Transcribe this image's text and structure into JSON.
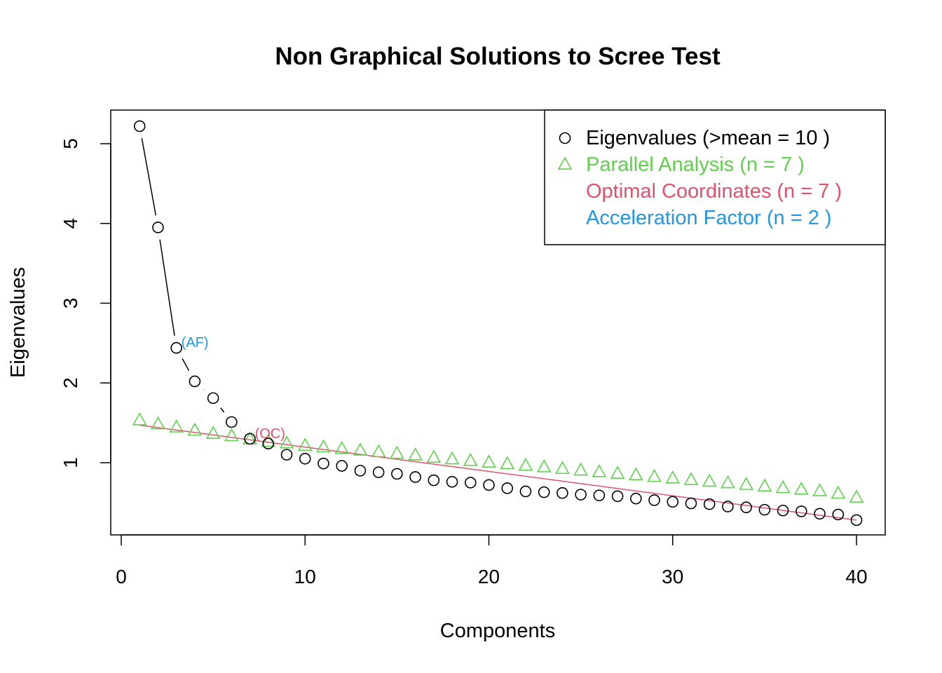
{
  "chart_data": {
    "type": "scatter",
    "title": "Non Graphical Solutions to Scree Test",
    "xlabel": "Components",
    "ylabel": "Eigenvalues",
    "xlim": [
      0,
      40
    ],
    "ylim": [
      0.3,
      5.3
    ],
    "x_ticks": [
      0,
      10,
      20,
      30,
      40
    ],
    "y_ticks": [
      1,
      2,
      3,
      4,
      5
    ],
    "grid": false,
    "legend_position": "top-right",
    "x": [
      1,
      2,
      3,
      4,
      5,
      6,
      7,
      8,
      9,
      10,
      11,
      12,
      13,
      14,
      15,
      16,
      17,
      18,
      19,
      20,
      21,
      22,
      23,
      24,
      25,
      26,
      27,
      28,
      29,
      30,
      31,
      32,
      33,
      34,
      35,
      36,
      37,
      38,
      39,
      40
    ],
    "series": [
      {
        "name": "Eigenvalues (>mean  =  10 )",
        "marker": "circle",
        "color": "#000000",
        "values": [
          5.22,
          3.95,
          2.44,
          2.02,
          1.81,
          1.51,
          1.3,
          1.24,
          1.1,
          1.05,
          0.99,
          0.96,
          0.9,
          0.88,
          0.86,
          0.82,
          0.78,
          0.76,
          0.75,
          0.72,
          0.68,
          0.64,
          0.63,
          0.62,
          0.6,
          0.59,
          0.58,
          0.55,
          0.53,
          0.51,
          0.49,
          0.48,
          0.45,
          0.44,
          0.41,
          0.4,
          0.39,
          0.36,
          0.35,
          0.28
        ]
      },
      {
        "name": "Parallel Analysis (n =  7 )",
        "marker": "triangle",
        "color": "#61D04F",
        "values": [
          1.53,
          1.48,
          1.44,
          1.4,
          1.36,
          1.33,
          1.29,
          1.26,
          1.24,
          1.21,
          1.19,
          1.17,
          1.15,
          1.13,
          1.11,
          1.09,
          1.06,
          1.04,
          1.02,
          1.0,
          0.98,
          0.96,
          0.94,
          0.92,
          0.9,
          0.88,
          0.86,
          0.84,
          0.82,
          0.8,
          0.78,
          0.76,
          0.74,
          0.72,
          0.7,
          0.68,
          0.66,
          0.64,
          0.61,
          0.56
        ]
      },
      {
        "name": "Optimal Coordinates (n =  7 )",
        "marker": "none",
        "color": "#DF536B",
        "line": {
          "x": [
            1,
            40
          ],
          "y": [
            1.47,
            0.28
          ]
        }
      },
      {
        "name": "Acceleration Factor (n =  2 )",
        "marker": "none",
        "color": "#2297E6"
      }
    ],
    "scree_line": {
      "color": "#000000",
      "x_from": 1,
      "x_to": 8
    },
    "annotations": [
      {
        "text": "(AF)",
        "x": 3,
        "y": 2.44,
        "color": "#2297E6"
      },
      {
        "text": "(OC)",
        "x": 7,
        "y": 1.3,
        "color": "#DF536B"
      }
    ]
  }
}
